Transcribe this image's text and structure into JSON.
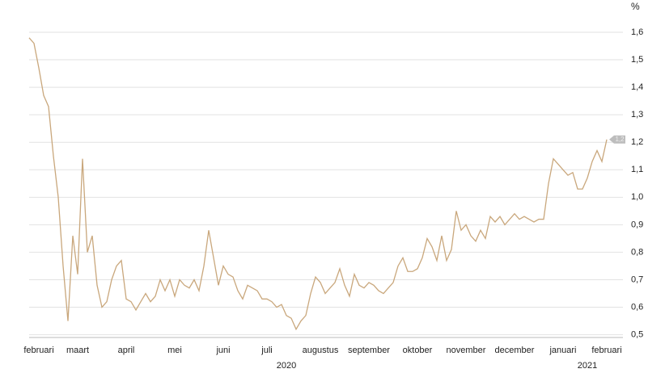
{
  "chart_data": {
    "type": "line",
    "y_unit": "%",
    "categories": [
      null,
      null,
      "februari",
      null,
      null,
      null,
      null,
      null,
      null,
      null,
      "maart",
      null,
      null,
      null,
      null,
      null,
      null,
      null,
      null,
      null,
      "april",
      null,
      null,
      null,
      null,
      null,
      null,
      null,
      null,
      null,
      "mei",
      null,
      null,
      null,
      null,
      null,
      null,
      null,
      null,
      null,
      "juni",
      null,
      null,
      null,
      null,
      null,
      null,
      null,
      null,
      "juli",
      null,
      null,
      null,
      null,
      null,
      null,
      null,
      null,
      null,
      null,
      "augustus",
      null,
      null,
      null,
      null,
      null,
      null,
      null,
      null,
      null,
      "september",
      null,
      null,
      null,
      null,
      null,
      null,
      null,
      null,
      null,
      "oktober",
      null,
      null,
      null,
      null,
      null,
      null,
      null,
      null,
      null,
      "november",
      null,
      null,
      null,
      null,
      null,
      null,
      null,
      null,
      null,
      "december",
      null,
      null,
      null,
      null,
      null,
      null,
      null,
      null,
      null,
      "januari",
      null,
      null,
      null,
      null,
      null,
      null,
      null,
      null,
      "februari"
    ],
    "years": [
      "2020",
      "2021"
    ],
    "series": [
      {
        "color": "#c9a77c",
        "values": [
          1.58,
          1.56,
          1.47,
          1.37,
          1.33,
          1.15,
          1.0,
          0.75,
          0.55,
          0.86,
          0.72,
          1.14,
          0.8,
          0.86,
          0.68,
          0.6,
          0.62,
          0.7,
          0.75,
          0.77,
          0.63,
          0.62,
          0.59,
          0.62,
          0.65,
          0.62,
          0.64,
          0.7,
          0.66,
          0.7,
          0.64,
          0.7,
          0.68,
          0.67,
          0.7,
          0.66,
          0.75,
          0.88,
          0.78,
          0.68,
          0.75,
          0.72,
          0.71,
          0.66,
          0.63,
          0.68,
          0.67,
          0.66,
          0.63,
          0.63,
          0.62,
          0.6,
          0.61,
          0.57,
          0.56,
          0.52,
          0.55,
          0.57,
          0.65,
          0.71,
          0.69,
          0.65,
          0.67,
          0.69,
          0.74,
          0.68,
          0.64,
          0.72,
          0.68,
          0.67,
          0.69,
          0.68,
          0.66,
          0.65,
          0.67,
          0.69,
          0.75,
          0.78,
          0.73,
          0.73,
          0.74,
          0.78,
          0.85,
          0.82,
          0.77,
          0.86,
          0.77,
          0.81,
          0.95,
          0.88,
          0.9,
          0.86,
          0.84,
          0.88,
          0.85,
          0.93,
          0.91,
          0.93,
          0.9,
          0.92,
          0.94,
          0.92,
          0.93,
          0.92,
          0.91,
          0.92,
          0.92,
          1.05,
          1.14,
          1.12,
          1.1,
          1.08,
          1.09,
          1.03,
          1.03,
          1.07,
          1.13,
          1.17,
          1.13,
          1.21
        ]
      }
    ],
    "end_label": "1,2",
    "ylim": [
      0.49,
      1.6
    ],
    "yticks": [
      {
        "value": 0.5,
        "label": "0,5"
      },
      {
        "value": 0.6,
        "label": "0,6"
      },
      {
        "value": 0.7,
        "label": "0,7"
      },
      {
        "value": 0.8,
        "label": "0,8"
      },
      {
        "value": 0.9,
        "label": "0,9"
      },
      {
        "value": 1.0,
        "label": "1,0"
      },
      {
        "value": 1.1,
        "label": "1,1"
      },
      {
        "value": 1.2,
        "label": "1,2"
      },
      {
        "value": 1.3,
        "label": "1,3"
      },
      {
        "value": 1.4,
        "label": "1,4"
      },
      {
        "value": 1.5,
        "label": "1,5"
      },
      {
        "value": 1.6,
        "label": "1,6"
      }
    ],
    "grid": true
  }
}
